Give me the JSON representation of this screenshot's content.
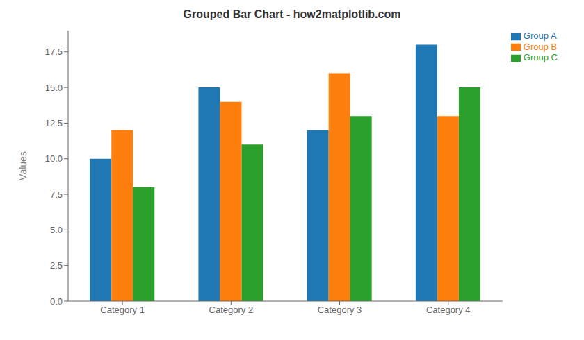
{
  "chart_data": {
    "type": "bar",
    "title": "Grouped Bar Chart - how2matplotlib.com",
    "categories": [
      "Category 1",
      "Category 2",
      "Category 3",
      "Category 4"
    ],
    "series": [
      {
        "name": "Group A",
        "color": "#1f77b4",
        "values": [
          10,
          15,
          12,
          18
        ]
      },
      {
        "name": "Group B",
        "color": "#ff7f0e",
        "values": [
          12,
          14,
          16,
          13
        ]
      },
      {
        "name": "Group C",
        "color": "#2ca02c",
        "values": [
          8,
          11,
          13,
          15
        ]
      }
    ],
    "ylabel": "Values",
    "ylim": [
      0,
      19
    ],
    "yticks": [
      {
        "value": 0,
        "label": "0.0"
      },
      2.5,
      {
        "value": 5,
        "label": "5.0"
      },
      7.5,
      {
        "value": 10,
        "label": "10.0"
      },
      12.5,
      {
        "value": 15,
        "label": "15.0"
      },
      17.5
    ],
    "legend": "upper right",
    "grid": false
  }
}
